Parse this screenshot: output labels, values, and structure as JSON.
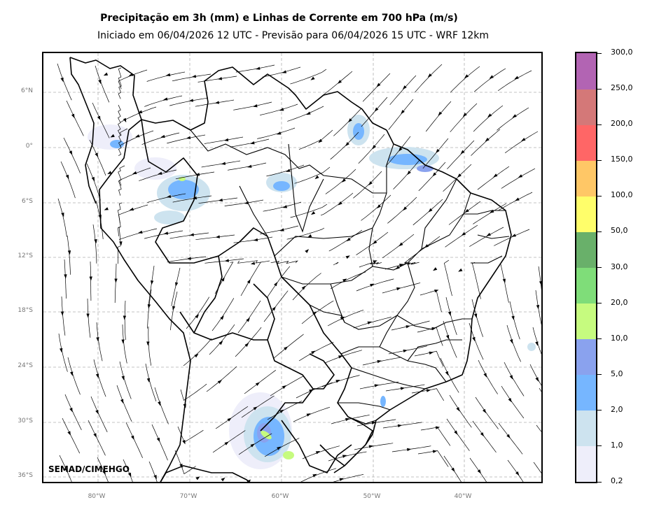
{
  "header": {
    "title": "Precipitação em 3h (mm) e Linhas de Corrente em 700 hPa (m/s)",
    "subtitle": "Iniciado em 06/04/2026 12 UTC - Previsão para 06/04/2026 15 UTC - WRF 12km"
  },
  "map": {
    "latitude_labels": [
      "6°N",
      "0°",
      "6°S",
      "12°S",
      "18°S",
      "24°S",
      "30°S",
      "36°S"
    ],
    "longitude_labels": [
      "80°W",
      "70°W",
      "60°W",
      "50°W",
      "40°W"
    ],
    "credit": "SEMAD/CIMEHGO"
  },
  "colorbar": {
    "labels": [
      "0,2",
      "1,0",
      "2,0",
      "5,0",
      "10,0",
      "20,0",
      "30,0",
      "50,0",
      "100,0",
      "150,0",
      "200,0",
      "250,0",
      "300,0"
    ],
    "colors": [
      "#eeeefa",
      "#cde3ef",
      "#76b6ff",
      "#8aa2ee",
      "#c6fb7f",
      "#7fdd79",
      "#69b06a",
      "#fffe6a",
      "#ffc766",
      "#ff6666",
      "#d47878",
      "#b264b3"
    ]
  }
}
